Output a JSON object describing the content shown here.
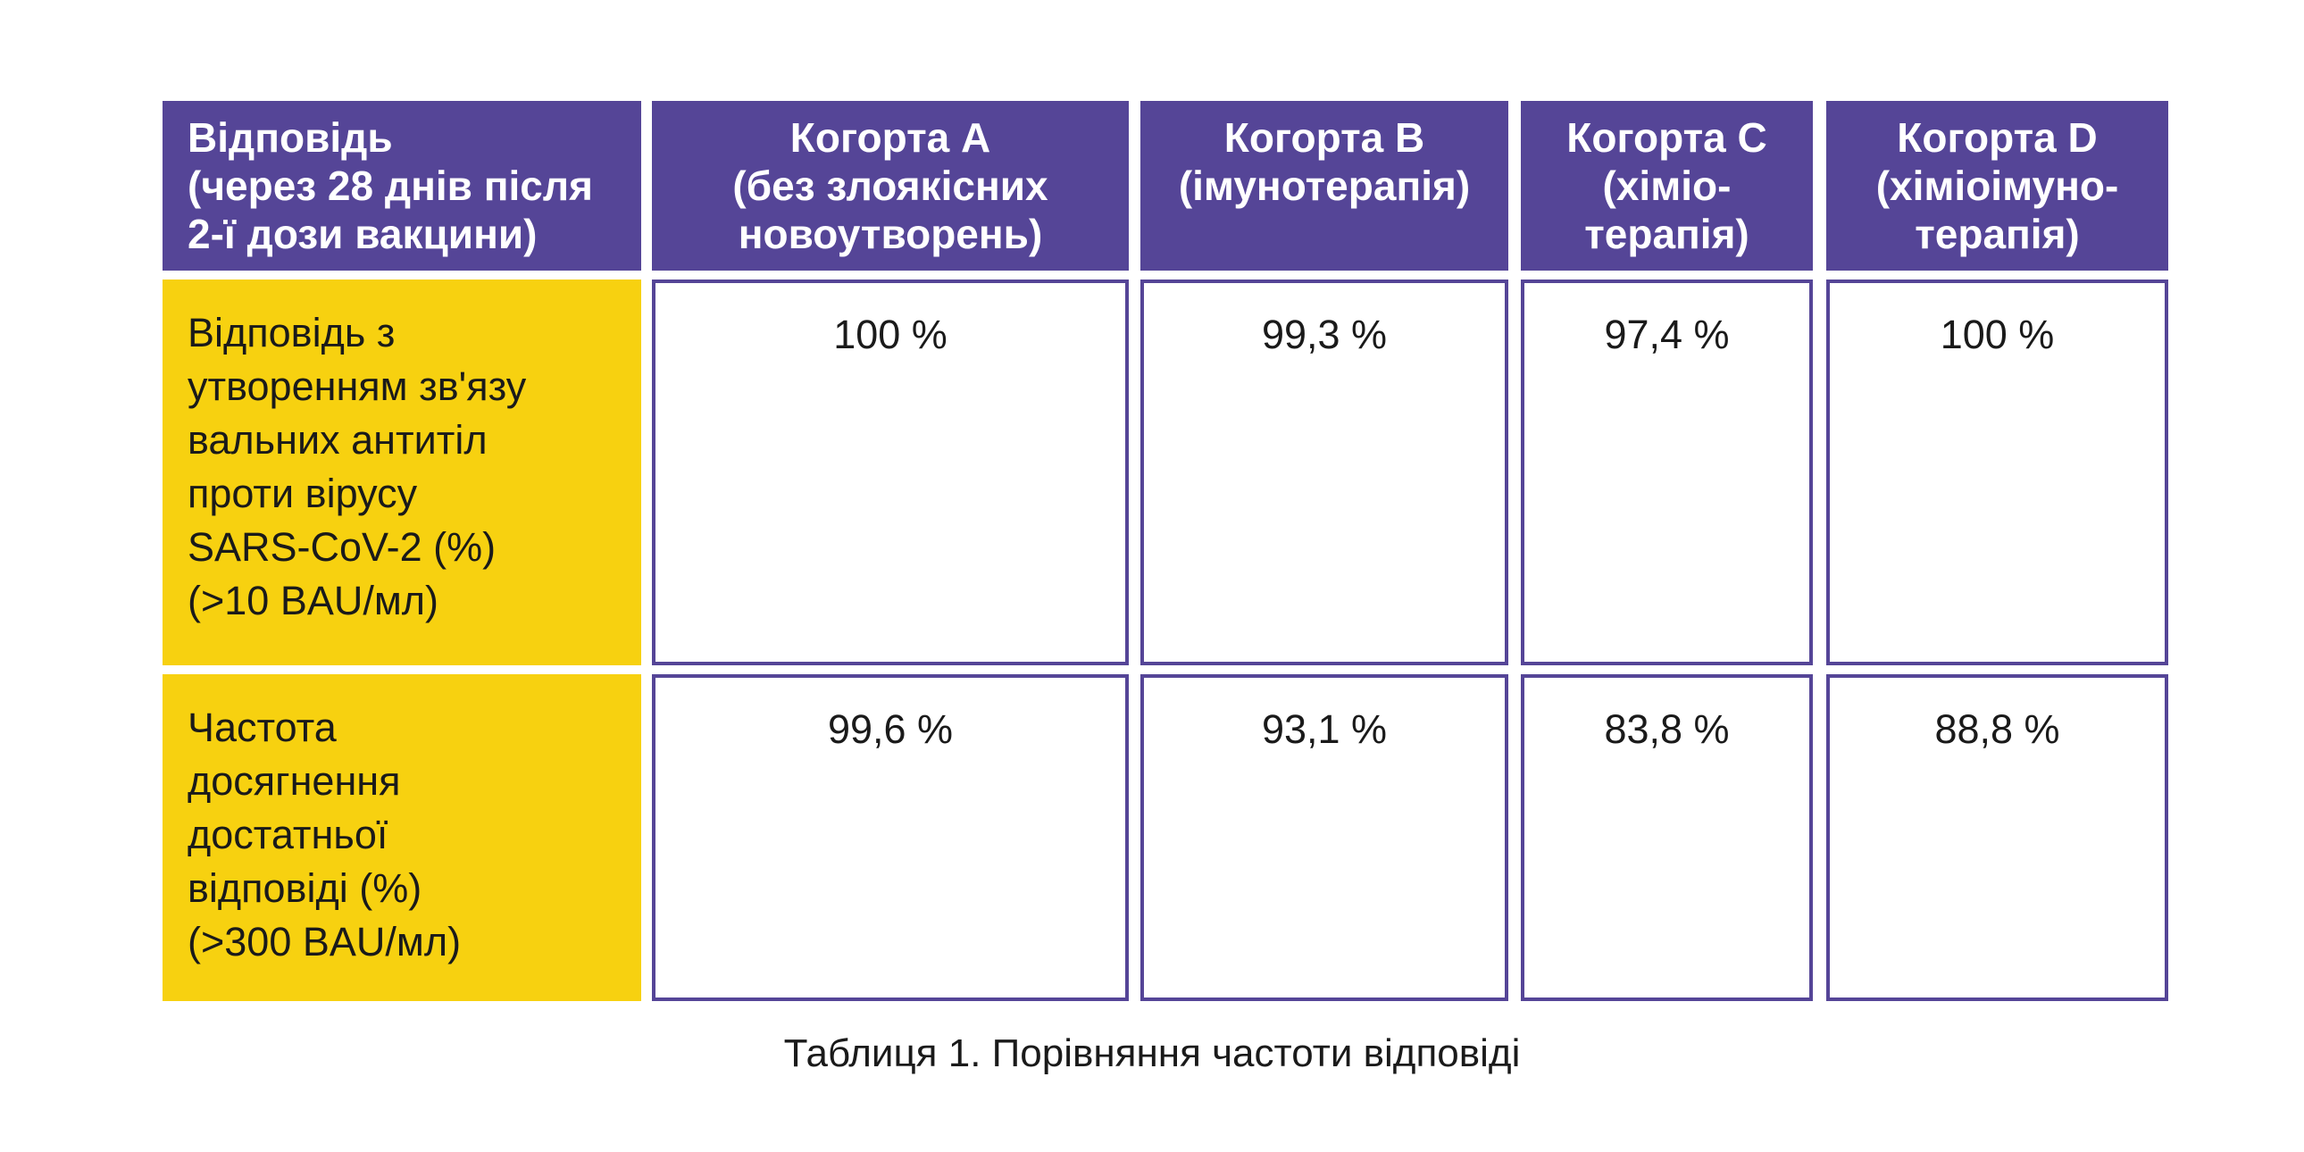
{
  "table": {
    "header": {
      "row_label": "Відповідь\n(через 28 днів після\n2-ї дози вакцини)",
      "cohorts": [
        "Когорта А\n(без злоякісних\nновоутворень)",
        "Когорта В\n(імунотерапія)",
        "Когорта С\n(хіміо-\nтерапія)",
        "Когорта D\n(хіміоімуно-\nтерапія)"
      ]
    },
    "rows": [
      {
        "label": "Відповідь з\nутворенням зв'язу\nвальних антитіл\nпроти вірусу\nSARS-CoV-2 (%)\n(>10 BAU/мл)",
        "values": [
          "100 %",
          "99,3 %",
          "97,4 %",
          "100 %"
        ]
      },
      {
        "label": "Частота\nдосягнення\nдостатньої\nвідповіді (%)\n(>300 BAU/мл)",
        "values": [
          "99,6 %",
          "93,1 %",
          "83,8 %",
          "88,8 %"
        ]
      }
    ]
  },
  "caption": "Таблиця 1. Порівняння частоти відповіді",
  "colors": {
    "header_bg": "#554597",
    "row_header_bg": "#f7d110",
    "border": "#554597"
  }
}
